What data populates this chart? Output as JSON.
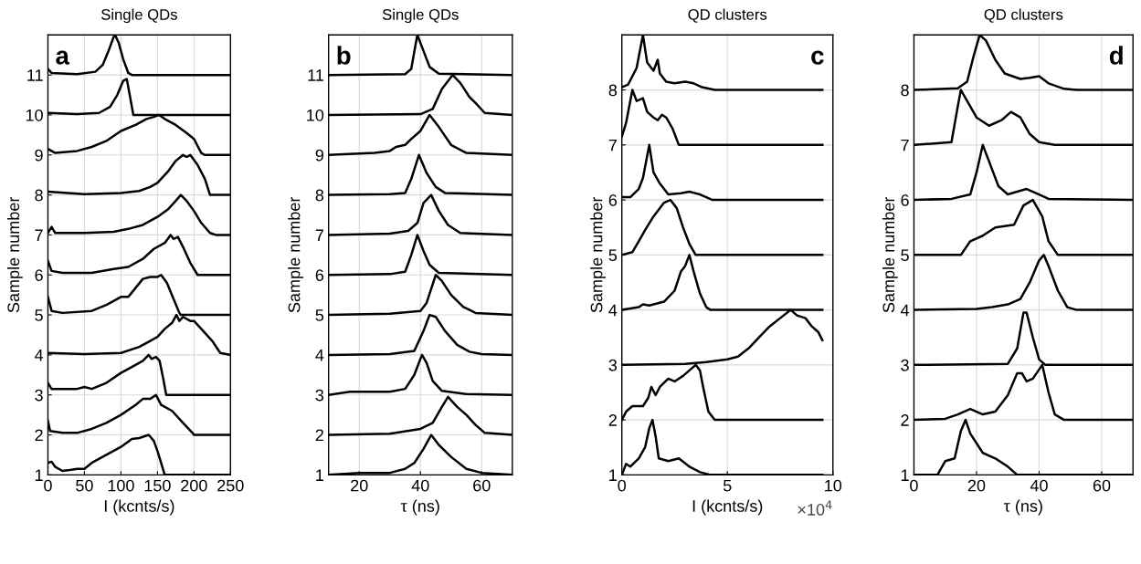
{
  "chart_data": [
    {
      "type": "line",
      "title": "Single QDs",
      "xlabel": "I (kcnts/s)",
      "ylabel": "Sample number",
      "annotations": [
        "a"
      ],
      "xlim": [
        0,
        250
      ],
      "xticks": [
        0,
        50,
        100,
        150,
        200,
        250
      ],
      "ylim": [
        1,
        12
      ],
      "yticks": [
        1,
        2,
        3,
        4,
        5,
        6,
        7,
        8,
        9,
        10,
        11
      ],
      "grid": true,
      "series": [
        {
          "color": "#000000",
          "x": [
            0,
            5,
            10,
            20,
            30,
            40,
            50,
            60,
            80,
            100,
            115,
            125,
            138,
            145,
            150,
            155,
            160,
            250
          ],
          "values": [
            1.3,
            1.33,
            1.2,
            1.1,
            1.12,
            1.15,
            1.15,
            1.3,
            1.5,
            1.7,
            1.9,
            1.92,
            2.0,
            1.85,
            1.6,
            1.3,
            1.0,
            1.0
          ]
        },
        {
          "color": "#000000",
          "x": [
            0,
            3,
            20,
            40,
            60,
            80,
            100,
            120,
            130,
            140,
            148,
            155,
            170,
            185,
            198,
            200,
            250
          ],
          "values": [
            2.35,
            2.1,
            2.05,
            2.05,
            2.15,
            2.3,
            2.5,
            2.75,
            2.9,
            2.9,
            3.0,
            2.75,
            2.6,
            2.3,
            2.05,
            2.0,
            2.0
          ]
        },
        {
          "color": "#000000",
          "x": [
            0,
            5,
            20,
            40,
            50,
            60,
            80,
            100,
            120,
            130,
            138,
            142,
            148,
            153,
            158,
            162,
            250
          ],
          "values": [
            3.3,
            3.15,
            3.15,
            3.15,
            3.2,
            3.15,
            3.3,
            3.55,
            3.75,
            3.85,
            4.0,
            3.9,
            3.95,
            3.85,
            3.4,
            3.0,
            3.0
          ]
        },
        {
          "color": "#000000",
          "x": [
            0,
            50,
            100,
            125,
            140,
            150,
            160,
            170,
            176,
            180,
            185,
            195,
            200,
            210,
            225,
            236,
            250
          ],
          "values": [
            4.05,
            4.02,
            4.05,
            4.2,
            4.35,
            4.45,
            4.65,
            4.8,
            5.0,
            4.85,
            4.95,
            4.85,
            4.85,
            4.65,
            4.35,
            4.05,
            4.0
          ]
        },
        {
          "color": "#000000",
          "x": [
            0,
            5,
            20,
            60,
            80,
            100,
            110,
            130,
            140,
            150,
            155,
            163,
            172,
            180,
            182,
            250
          ],
          "values": [
            5.45,
            5.1,
            5.05,
            5.1,
            5.25,
            5.45,
            5.45,
            5.9,
            5.95,
            5.95,
            6.0,
            5.8,
            5.4,
            5.05,
            5.0,
            5.0
          ]
        },
        {
          "color": "#000000",
          "x": [
            0,
            5,
            20,
            60,
            90,
            110,
            130,
            145,
            160,
            168,
            172,
            178,
            185,
            195,
            205,
            250
          ],
          "values": [
            6.35,
            6.1,
            6.05,
            6.05,
            6.15,
            6.2,
            6.4,
            6.65,
            6.8,
            7.0,
            6.9,
            6.95,
            6.7,
            6.3,
            6.0,
            6.0
          ]
        },
        {
          "color": "#000000",
          "x": [
            0,
            5,
            10,
            50,
            90,
            110,
            130,
            150,
            165,
            175,
            182,
            190,
            200,
            210,
            222,
            230,
            250
          ],
          "values": [
            7.05,
            7.2,
            7.05,
            7.05,
            7.08,
            7.15,
            7.25,
            7.45,
            7.65,
            7.85,
            8.0,
            7.85,
            7.6,
            7.3,
            7.05,
            7.0,
            7.0
          ]
        },
        {
          "color": "#000000",
          "x": [
            0,
            50,
            100,
            125,
            140,
            150,
            165,
            175,
            185,
            190,
            195,
            205,
            215,
            222,
            250
          ],
          "values": [
            8.08,
            8.02,
            8.05,
            8.1,
            8.2,
            8.3,
            8.6,
            8.85,
            9.0,
            8.95,
            9.0,
            8.75,
            8.4,
            8.0,
            8.0
          ]
        },
        {
          "color": "#000000",
          "x": [
            0,
            10,
            40,
            60,
            80,
            100,
            120,
            135,
            145,
            152,
            160,
            175,
            190,
            200,
            210,
            215,
            250
          ],
          "values": [
            9.15,
            9.05,
            9.1,
            9.2,
            9.35,
            9.6,
            9.75,
            9.9,
            9.95,
            10.0,
            9.9,
            9.75,
            9.55,
            9.4,
            9.05,
            9.0,
            9.0
          ]
        },
        {
          "color": "#000000",
          "x": [
            0,
            40,
            70,
            85,
            95,
            103,
            108,
            112,
            117,
            250
          ],
          "values": [
            10.05,
            10.02,
            10.05,
            10.2,
            10.5,
            10.85,
            10.9,
            10.5,
            10.0,
            10.0
          ]
        },
        {
          "color": "#000000",
          "x": [
            0,
            5,
            40,
            65,
            75,
            83,
            90,
            92,
            97,
            103,
            110,
            115,
            250
          ],
          "values": [
            11.15,
            11.05,
            11.02,
            11.08,
            11.25,
            11.6,
            11.95,
            12.0,
            11.8,
            11.4,
            11.05,
            11.0,
            11.0
          ]
        }
      ]
    },
    {
      "type": "line",
      "title": "Single QDs",
      "xlabel": "τ (ns)",
      "ylabel": "Sample number",
      "annotations": [
        "b"
      ],
      "xlim": [
        10,
        70
      ],
      "xticks": [
        20,
        40,
        60
      ],
      "ylim": [
        1,
        12
      ],
      "yticks": [
        1,
        2,
        3,
        4,
        5,
        6,
        7,
        8,
        9,
        10,
        11
      ],
      "grid": true,
      "series": [
        {
          "color": "#000000",
          "x": [
            10,
            20,
            30,
            35,
            38,
            41,
            43.5,
            46,
            50,
            55,
            60,
            70
          ],
          "values": [
            1.0,
            1.05,
            1.05,
            1.15,
            1.3,
            1.65,
            2.0,
            1.75,
            1.45,
            1.15,
            1.05,
            1.0
          ]
        },
        {
          "color": "#000000",
          "x": [
            10,
            30,
            40,
            44,
            47,
            49,
            52,
            55,
            58,
            61,
            70
          ],
          "values": [
            2.0,
            2.03,
            2.15,
            2.3,
            2.7,
            2.95,
            2.7,
            2.5,
            2.25,
            2.05,
            2.0
          ]
        },
        {
          "color": "#000000",
          "x": [
            10,
            17,
            30,
            35,
            38,
            40.5,
            42,
            44,
            47,
            55,
            70
          ],
          "values": [
            3.0,
            3.08,
            3.08,
            3.15,
            3.5,
            4.0,
            3.8,
            3.35,
            3.1,
            3.02,
            3.0
          ]
        },
        {
          "color": "#000000",
          "x": [
            10,
            30,
            38,
            41,
            43,
            45,
            48,
            52,
            56,
            60,
            70
          ],
          "values": [
            4.0,
            4.02,
            4.1,
            4.6,
            5.0,
            4.95,
            4.6,
            4.25,
            4.08,
            4.02,
            4.0
          ]
        },
        {
          "color": "#000000",
          "x": [
            10,
            30,
            40,
            42,
            45,
            47,
            50,
            54,
            58,
            70
          ],
          "values": [
            5.0,
            5.03,
            5.1,
            5.3,
            6.0,
            5.85,
            5.5,
            5.2,
            5.05,
            5.0
          ]
        },
        {
          "color": "#000000",
          "x": [
            10,
            30,
            35,
            37,
            39,
            41,
            43,
            46,
            70
          ],
          "values": [
            6.0,
            6.02,
            6.08,
            6.5,
            7.0,
            6.6,
            6.25,
            6.05,
            6.0
          ]
        },
        {
          "color": "#000000",
          "x": [
            10,
            30,
            36,
            39,
            41,
            43.5,
            46,
            49,
            53,
            70
          ],
          "values": [
            7.0,
            7.03,
            7.1,
            7.3,
            7.8,
            8.0,
            7.6,
            7.25,
            7.05,
            7.0
          ]
        },
        {
          "color": "#000000",
          "x": [
            10,
            30,
            35,
            37,
            39.5,
            42,
            45,
            48,
            70
          ],
          "values": [
            8.0,
            8.02,
            8.05,
            8.4,
            9.0,
            8.55,
            8.2,
            8.05,
            8.0
          ]
        },
        {
          "color": "#000000",
          "x": [
            10,
            25,
            30,
            32,
            35,
            37,
            40,
            43,
            46,
            50,
            55,
            70
          ],
          "values": [
            9.0,
            9.05,
            9.1,
            9.2,
            9.25,
            9.4,
            9.6,
            10.0,
            9.7,
            9.25,
            9.05,
            9.0
          ]
        },
        {
          "color": "#000000",
          "x": [
            10,
            40,
            44,
            47,
            50.5,
            53,
            56,
            58,
            61,
            70
          ],
          "values": [
            10.0,
            10.02,
            10.15,
            10.65,
            11.0,
            10.8,
            10.45,
            10.3,
            10.05,
            10.0
          ]
        },
        {
          "color": "#000000",
          "x": [
            10,
            35,
            37,
            38.5,
            39,
            41,
            43,
            46,
            70
          ],
          "values": [
            11.0,
            11.02,
            11.15,
            11.8,
            12.0,
            11.6,
            11.2,
            11.03,
            11.0
          ]
        }
      ]
    },
    {
      "type": "line",
      "title": "QD clusters",
      "xlabel": "I (kcnts/s)",
      "ylabel": "Sample number",
      "annotations": [
        "c",
        "×10$^{4}$"
      ],
      "xlim": [
        0,
        10
      ],
      "xticks": [
        0,
        5,
        10
      ],
      "ylim": [
        1,
        9
      ],
      "yticks": [
        1,
        2,
        3,
        4,
        5,
        6,
        7,
        8
      ],
      "grid": true,
      "series": [
        {
          "color": "#000000",
          "x": [
            0,
            0.2,
            0.4,
            0.8,
            1.1,
            1.3,
            1.45,
            1.6,
            1.75,
            2.2,
            2.7,
            3.2,
            3.7,
            4.2,
            9.5
          ],
          "values": [
            1.0,
            1.2,
            1.15,
            1.3,
            1.5,
            1.85,
            2.0,
            1.7,
            1.3,
            1.25,
            1.3,
            1.15,
            1.05,
            1.0,
            1.0
          ]
        },
        {
          "color": "#000000",
          "x": [
            0,
            0.2,
            0.5,
            1.0,
            1.25,
            1.4,
            1.6,
            1.8,
            2.2,
            2.5,
            2.9,
            3.2,
            3.5,
            3.7,
            3.85,
            4.1,
            4.4,
            9.5
          ],
          "values": [
            2.0,
            2.15,
            2.25,
            2.25,
            2.4,
            2.6,
            2.45,
            2.6,
            2.75,
            2.7,
            2.8,
            2.9,
            3.0,
            2.9,
            2.6,
            2.15,
            2.0,
            2.0
          ]
        },
        {
          "color": "#000000",
          "x": [
            0,
            3.0,
            4.0,
            5.0,
            5.5,
            6.0,
            6.5,
            7.0,
            7.5,
            8.0,
            8.3,
            8.7,
            9.0,
            9.3,
            9.5
          ],
          "values": [
            3.0,
            3.02,
            3.05,
            3.1,
            3.15,
            3.3,
            3.5,
            3.7,
            3.85,
            4.0,
            3.9,
            3.85,
            3.7,
            3.6,
            3.45
          ]
        },
        {
          "color": "#000000",
          "x": [
            0,
            0.8,
            1.0,
            1.3,
            2.0,
            2.5,
            2.8,
            3.0,
            3.2,
            3.4,
            3.7,
            4.0,
            4.2,
            9.5
          ],
          "values": [
            4.0,
            4.05,
            4.1,
            4.08,
            4.15,
            4.35,
            4.7,
            4.8,
            5.0,
            4.7,
            4.3,
            4.05,
            4.0,
            4.0
          ]
        },
        {
          "color": "#000000",
          "x": [
            0,
            0.5,
            0.8,
            1.1,
            1.5,
            2.0,
            2.3,
            2.6,
            2.9,
            3.2,
            3.5,
            9.5
          ],
          "values": [
            5.0,
            5.05,
            5.25,
            5.45,
            5.7,
            5.95,
            6.0,
            5.85,
            5.5,
            5.2,
            5.0,
            5.0
          ]
        },
        {
          "color": "#000000",
          "x": [
            0,
            0.4,
            0.8,
            1.0,
            1.3,
            1.5,
            1.8,
            2.2,
            2.8,
            3.2,
            3.7,
            4.3,
            9.5
          ],
          "values": [
            6.05,
            6.05,
            6.2,
            6.4,
            7.0,
            6.5,
            6.3,
            6.1,
            6.12,
            6.15,
            6.1,
            6.0,
            6.0
          ]
        },
        {
          "color": "#000000",
          "x": [
            0,
            0.2,
            0.5,
            0.7,
            1.0,
            1.2,
            1.5,
            1.7,
            1.9,
            2.1,
            2.4,
            2.7,
            9.5
          ],
          "values": [
            7.15,
            7.4,
            8.0,
            7.8,
            7.85,
            7.6,
            7.5,
            7.45,
            7.55,
            7.5,
            7.3,
            7.0,
            7.0
          ]
        },
        {
          "color": "#000000",
          "x": [
            0,
            0.3,
            0.7,
            1.0,
            1.2,
            1.5,
            1.7,
            1.8,
            2.1,
            2.5,
            3.0,
            3.4,
            3.8,
            4.4,
            9.5
          ],
          "values": [
            8.05,
            8.1,
            8.4,
            9.0,
            8.5,
            8.35,
            8.55,
            8.3,
            8.15,
            8.12,
            8.15,
            8.12,
            8.05,
            8.0,
            8.0
          ]
        }
      ]
    },
    {
      "type": "line",
      "title": "QD clusters",
      "xlabel": "τ (ns)",
      "ylabel": "Sample number",
      "annotations": [
        "d"
      ],
      "xlim": [
        0,
        70
      ],
      "xticks": [
        0,
        20,
        40,
        60
      ],
      "ylim": [
        1,
        9
      ],
      "yticks": [
        1,
        2,
        3,
        4,
        5,
        6,
        7,
        8
      ],
      "grid": true,
      "series": [
        {
          "color": "#000000",
          "x": [
            0,
            7.5,
            10,
            13,
            15,
            16.5,
            18,
            22,
            26,
            30,
            33,
            70
          ],
          "values": [
            1.0,
            1.0,
            1.25,
            1.3,
            1.8,
            2.0,
            1.75,
            1.4,
            1.3,
            1.15,
            1.0,
            1.0
          ]
        },
        {
          "color": "#000000",
          "x": [
            0,
            10,
            14,
            18,
            22,
            26,
            30,
            33,
            34.5,
            36,
            38,
            41,
            43,
            45,
            48,
            70
          ],
          "values": [
            2.0,
            2.02,
            2.1,
            2.2,
            2.1,
            2.15,
            2.45,
            2.85,
            2.85,
            2.7,
            2.75,
            3.0,
            2.5,
            2.1,
            2.0,
            2.0
          ]
        },
        {
          "color": "#000000",
          "x": [
            0,
            30,
            33,
            35,
            36,
            38,
            40,
            42,
            70
          ],
          "values": [
            3.0,
            3.02,
            3.3,
            3.95,
            3.95,
            3.5,
            3.1,
            3.0,
            3.0
          ]
        },
        {
          "color": "#000000",
          "x": [
            0,
            20,
            25,
            30,
            34,
            37,
            40,
            41.5,
            43,
            46,
            49,
            52,
            70
          ],
          "values": [
            4.0,
            4.02,
            4.05,
            4.1,
            4.2,
            4.5,
            4.9,
            5.0,
            4.8,
            4.35,
            4.05,
            4.0,
            4.0
          ]
        },
        {
          "color": "#000000",
          "x": [
            0,
            15,
            18,
            22,
            26,
            32,
            35,
            38,
            41,
            43,
            46,
            70
          ],
          "values": [
            5.0,
            5.0,
            5.25,
            5.35,
            5.5,
            5.55,
            5.9,
            6.0,
            5.7,
            5.25,
            5.0,
            5.0
          ]
        },
        {
          "color": "#000000",
          "x": [
            0,
            12,
            18,
            20,
            22,
            24,
            27,
            30,
            33,
            36,
            40,
            43,
            70
          ],
          "values": [
            6.0,
            6.02,
            6.1,
            6.5,
            7.0,
            6.7,
            6.25,
            6.1,
            6.15,
            6.2,
            6.1,
            6.02,
            6.0
          ]
        },
        {
          "color": "#000000",
          "x": [
            0,
            12,
            14,
            15,
            17,
            20,
            24,
            28,
            31,
            34,
            37,
            40,
            45,
            70
          ],
          "values": [
            7.0,
            7.05,
            7.7,
            8.0,
            7.8,
            7.5,
            7.35,
            7.45,
            7.6,
            7.5,
            7.2,
            7.05,
            7.0,
            7.0
          ]
        },
        {
          "color": "#000000",
          "x": [
            0,
            14,
            17,
            19,
            21,
            23,
            26,
            29,
            34,
            37,
            40,
            43,
            48,
            52,
            70
          ],
          "values": [
            8.0,
            8.03,
            8.15,
            8.6,
            9.0,
            8.9,
            8.55,
            8.3,
            8.2,
            8.22,
            8.25,
            8.12,
            8.02,
            8.0,
            8.0
          ]
        }
      ]
    }
  ]
}
